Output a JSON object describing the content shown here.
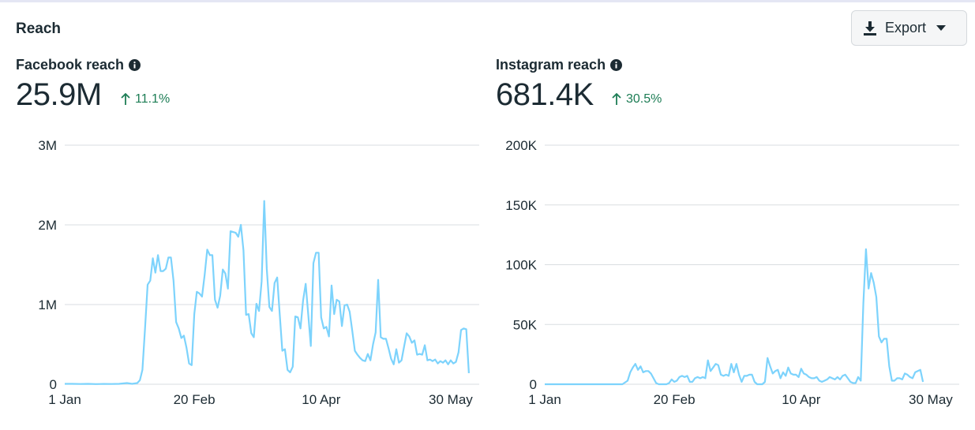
{
  "section": {
    "title": "Reach"
  },
  "toolbar": {
    "export_label": "Export",
    "export_icon": "download-icon"
  },
  "colors": {
    "line": "#7dd3fc",
    "grid": "#dadde1",
    "positive": "#1d7d55"
  },
  "panels": {
    "facebook": {
      "label": "Facebook reach",
      "value": "25.9M",
      "change": "11.1%"
    },
    "instagram": {
      "label": "Instagram reach",
      "value": "681.4K",
      "change": "30.5%"
    }
  },
  "chart_data": [
    {
      "type": "line",
      "title": "Facebook reach",
      "x_ticks": [
        {
          "label": "1 Jan",
          "day": 0
        },
        {
          "label": "20 Feb",
          "day": 50
        },
        {
          "label": "10 Apr",
          "day": 99
        },
        {
          "label": "30 May",
          "day": 149
        }
      ],
      "y_ticks": [
        {
          "label": "0",
          "value": 0
        },
        {
          "label": "1M",
          "value": 1000000
        },
        {
          "label": "2M",
          "value": 2000000
        },
        {
          "label": "3M",
          "value": 3000000
        }
      ],
      "ylim": [
        0,
        3000000
      ],
      "xlim": [
        0,
        160
      ],
      "series": [
        {
          "name": "Facebook reach",
          "values": [
            [
              0,
              5000
            ],
            [
              3,
              5000
            ],
            [
              6,
              3000
            ],
            [
              9,
              5000
            ],
            [
              12,
              2000
            ],
            [
              15,
              4000
            ],
            [
              18,
              3000
            ],
            [
              21,
              5000
            ],
            [
              24,
              15000
            ],
            [
              26,
              5000
            ],
            [
              28,
              15000
            ],
            [
              29,
              50000
            ],
            [
              30,
              180000
            ],
            [
              31,
              700000
            ],
            [
              32,
              1250000
            ],
            [
              33,
              1300000
            ],
            [
              34,
              1580000
            ],
            [
              35,
              1400000
            ],
            [
              36,
              1620000
            ],
            [
              37,
              1420000
            ],
            [
              38,
              1420000
            ],
            [
              39,
              1450000
            ],
            [
              40,
              1590000
            ],
            [
              41,
              1590000
            ],
            [
              42,
              1300000
            ],
            [
              43,
              780000
            ],
            [
              44,
              700000
            ],
            [
              45,
              580000
            ],
            [
              46,
              610000
            ],
            [
              47,
              460000
            ],
            [
              48,
              260000
            ],
            [
              49,
              240000
            ],
            [
              50,
              880000
            ],
            [
              51,
              1160000
            ],
            [
              52,
              1140000
            ],
            [
              53,
              1100000
            ],
            [
              54,
              1370000
            ],
            [
              55,
              1690000
            ],
            [
              56,
              1620000
            ],
            [
              57,
              1620000
            ],
            [
              58,
              1060000
            ],
            [
              59,
              960000
            ],
            [
              60,
              1110000
            ],
            [
              61,
              1440000
            ],
            [
              62,
              1390000
            ],
            [
              63,
              1200000
            ],
            [
              64,
              1920000
            ],
            [
              65,
              1910000
            ],
            [
              66,
              1900000
            ],
            [
              67,
              1850000
            ],
            [
              68,
              2000000
            ],
            [
              69,
              1680000
            ],
            [
              70,
              870000
            ],
            [
              71,
              880000
            ],
            [
              72,
              640000
            ],
            [
              73,
              590000
            ],
            [
              74,
              1010000
            ],
            [
              75,
              920000
            ],
            [
              76,
              1290000
            ],
            [
              77,
              2300000
            ],
            [
              78,
              1450000
            ],
            [
              79,
              970000
            ],
            [
              80,
              920000
            ],
            [
              81,
              1270000
            ],
            [
              82,
              1340000
            ],
            [
              83,
              880000
            ],
            [
              84,
              420000
            ],
            [
              85,
              440000
            ],
            [
              86,
              180000
            ],
            [
              87,
              150000
            ],
            [
              88,
              220000
            ],
            [
              89,
              850000
            ],
            [
              90,
              840000
            ],
            [
              91,
              700000
            ],
            [
              92,
              1050000
            ],
            [
              93,
              1260000
            ],
            [
              94,
              880000
            ],
            [
              95,
              480000
            ],
            [
              96,
              1520000
            ],
            [
              97,
              1650000
            ],
            [
              98,
              1650000
            ],
            [
              99,
              840000
            ],
            [
              100,
              700000
            ],
            [
              101,
              720000
            ],
            [
              102,
              600000
            ],
            [
              103,
              1240000
            ],
            [
              104,
              880000
            ],
            [
              105,
              1060000
            ],
            [
              106,
              1040000
            ],
            [
              107,
              730000
            ],
            [
              108,
              990000
            ],
            [
              109,
              1000000
            ],
            [
              110,
              910000
            ],
            [
              111,
              670000
            ],
            [
              112,
              420000
            ],
            [
              113,
              370000
            ],
            [
              114,
              330000
            ],
            [
              115,
              300000
            ],
            [
              116,
              290000
            ],
            [
              117,
              380000
            ],
            [
              118,
              300000
            ],
            [
              119,
              500000
            ],
            [
              120,
              650000
            ],
            [
              121,
              1310000
            ],
            [
              122,
              590000
            ],
            [
              123,
              570000
            ],
            [
              124,
              570000
            ],
            [
              125,
              450000
            ],
            [
              126,
              320000
            ],
            [
              127,
              250000
            ],
            [
              128,
              440000
            ],
            [
              129,
              270000
            ],
            [
              130,
              300000
            ],
            [
              131,
              470000
            ],
            [
              132,
              640000
            ],
            [
              133,
              600000
            ],
            [
              134,
              520000
            ],
            [
              135,
              550000
            ],
            [
              136,
              370000
            ],
            [
              137,
              380000
            ],
            [
              138,
              370000
            ],
            [
              139,
              490000
            ],
            [
              140,
              300000
            ],
            [
              141,
              310000
            ],
            [
              142,
              290000
            ],
            [
              143,
              310000
            ],
            [
              144,
              260000
            ],
            [
              145,
              290000
            ],
            [
              146,
              270000
            ],
            [
              147,
              300000
            ],
            [
              148,
              250000
            ],
            [
              149,
              300000
            ],
            [
              150,
              260000
            ],
            [
              151,
              280000
            ],
            [
              152,
              400000
            ],
            [
              153,
              680000
            ],
            [
              154,
              700000
            ],
            [
              155,
              690000
            ],
            [
              156,
              140000
            ]
          ]
        }
      ]
    },
    {
      "type": "line",
      "title": "Instagram reach",
      "x_ticks": [
        {
          "label": "1 Jan",
          "day": 0
        },
        {
          "label": "20 Feb",
          "day": 50
        },
        {
          "label": "10 Apr",
          "day": 99
        },
        {
          "label": "30 May",
          "day": 149
        }
      ],
      "y_ticks": [
        {
          "label": "0",
          "value": 0
        },
        {
          "label": "50K",
          "value": 50000
        },
        {
          "label": "100K",
          "value": 100000
        },
        {
          "label": "150K",
          "value": 150000
        },
        {
          "label": "200K",
          "value": 200000
        }
      ],
      "ylim": [
        0,
        200000
      ],
      "xlim": [
        0,
        160
      ],
      "series": [
        {
          "name": "Instagram reach",
          "values": [
            [
              0,
              0
            ],
            [
              10,
              0
            ],
            [
              20,
              0
            ],
            [
              30,
              0
            ],
            [
              32,
              3000
            ],
            [
              33,
              10000
            ],
            [
              34,
              14000
            ],
            [
              35,
              17000
            ],
            [
              36,
              12000
            ],
            [
              37,
              15000
            ],
            [
              38,
              10000
            ],
            [
              39,
              11000
            ],
            [
              40,
              11000
            ],
            [
              41,
              9000
            ],
            [
              42,
              5000
            ],
            [
              43,
              1000
            ],
            [
              44,
              0
            ],
            [
              45,
              0
            ],
            [
              46,
              0
            ],
            [
              47,
              0
            ],
            [
              48,
              1000
            ],
            [
              49,
              4000
            ],
            [
              50,
              2000
            ],
            [
              51,
              3000
            ],
            [
              52,
              6000
            ],
            [
              53,
              7000
            ],
            [
              54,
              6000
            ],
            [
              55,
              7000
            ],
            [
              56,
              2000
            ],
            [
              57,
              2000
            ],
            [
              58,
              5000
            ],
            [
              59,
              6000
            ],
            [
              60,
              5000
            ],
            [
              61,
              6000
            ],
            [
              62,
              5000
            ],
            [
              63,
              20000
            ],
            [
              64,
              11000
            ],
            [
              65,
              14000
            ],
            [
              66,
              17000
            ],
            [
              67,
              16000
            ],
            [
              68,
              8000
            ],
            [
              69,
              7000
            ],
            [
              70,
              8000
            ],
            [
              71,
              7000
            ],
            [
              72,
              17000
            ],
            [
              73,
              10000
            ],
            [
              74,
              17000
            ],
            [
              75,
              8000
            ],
            [
              76,
              2000
            ],
            [
              77,
              7000
            ],
            [
              78,
              7000
            ],
            [
              79,
              8000
            ],
            [
              80,
              8000
            ],
            [
              81,
              2000
            ],
            [
              82,
              0
            ],
            [
              83,
              0
            ],
            [
              84,
              0
            ],
            [
              85,
              2000
            ],
            [
              86,
              22000
            ],
            [
              87,
              15000
            ],
            [
              88,
              9000
            ],
            [
              89,
              11000
            ],
            [
              90,
              12000
            ],
            [
              91,
              5000
            ],
            [
              92,
              10000
            ],
            [
              93,
              7000
            ],
            [
              94,
              14000
            ],
            [
              95,
              9000
            ],
            [
              96,
              8000
            ],
            [
              97,
              8000
            ],
            [
              98,
              6000
            ],
            [
              99,
              13000
            ],
            [
              100,
              9000
            ],
            [
              101,
              8000
            ],
            [
              102,
              6000
            ],
            [
              103,
              5000
            ],
            [
              104,
              5000
            ],
            [
              105,
              6000
            ],
            [
              106,
              3000
            ],
            [
              107,
              2000
            ],
            [
              108,
              3000
            ],
            [
              109,
              4000
            ],
            [
              110,
              6000
            ],
            [
              111,
              5000
            ],
            [
              112,
              4000
            ],
            [
              113,
              6000
            ],
            [
              114,
              4000
            ],
            [
              115,
              7000
            ],
            [
              116,
              8000
            ],
            [
              117,
              5000
            ],
            [
              118,
              2000
            ],
            [
              119,
              1000
            ],
            [
              120,
              1000
            ],
            [
              121,
              6000
            ],
            [
              122,
              3000
            ],
            [
              123,
              68000
            ],
            [
              124,
              113000
            ],
            [
              125,
              80000
            ],
            [
              126,
              93000
            ],
            [
              127,
              85000
            ],
            [
              128,
              73000
            ],
            [
              129,
              40000
            ],
            [
              130,
              35000
            ],
            [
              131,
              38000
            ],
            [
              132,
              38000
            ],
            [
              133,
              15000
            ],
            [
              134,
              3000
            ],
            [
              135,
              3000
            ],
            [
              136,
              5000
            ],
            [
              137,
              5000
            ],
            [
              138,
              4000
            ],
            [
              139,
              9000
            ],
            [
              140,
              8000
            ],
            [
              141,
              6000
            ],
            [
              142,
              5000
            ],
            [
              143,
              10000
            ],
            [
              144,
              11000
            ],
            [
              145,
              12000
            ],
            [
              146,
              2000
            ]
          ]
        }
      ]
    }
  ]
}
